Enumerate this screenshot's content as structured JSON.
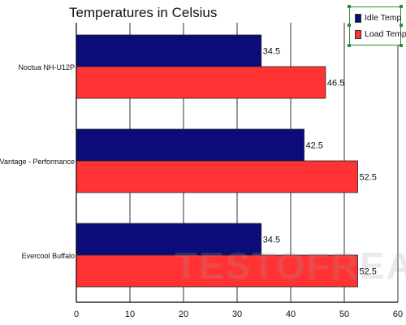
{
  "chart_data": {
    "type": "bar",
    "orientation": "horizontal",
    "title": "Temperatures in Celsius",
    "categories": [
      "Noctua NH-U12P",
      "CoolIt Vantage - Performance",
      "Evercool Buffalo"
    ],
    "series": [
      {
        "name": "Idle Temp",
        "values": [
          34.5,
          42.5,
          34.5
        ],
        "color": "#0b0b7a"
      },
      {
        "name": "Load Temp",
        "values": [
          46.5,
          52.5,
          52.5
        ],
        "color": "#ff3333"
      }
    ],
    "data_labels": [
      [
        "34.5",
        "42.5",
        "34.5"
      ],
      [
        "46.5",
        "52.5",
        "52.5"
      ]
    ],
    "xlim": [
      0,
      60
    ],
    "xticks": [
      0,
      10,
      20,
      30,
      40,
      50,
      60
    ],
    "grid": "vertical",
    "legend": "top-right"
  },
  "watermark": "TESTOFREAKS",
  "colors": {
    "grid": "#333333",
    "axis": "#000000",
    "legend_border": "#2e8b2e"
  }
}
